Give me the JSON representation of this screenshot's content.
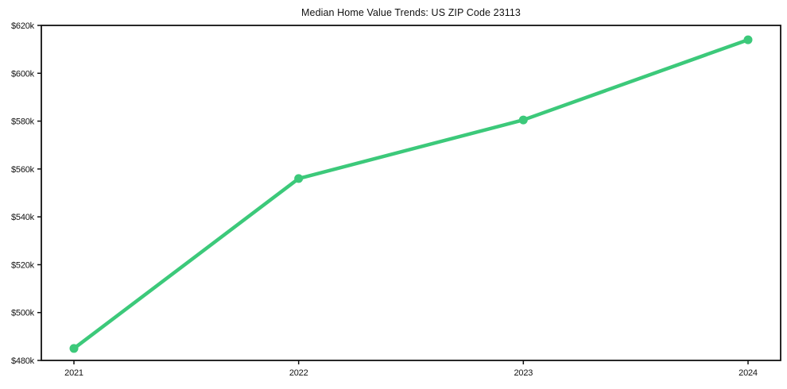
{
  "chart_data": {
    "type": "line",
    "title": "Median Home Value Trends: US ZIP Code 23113",
    "x": [
      2021,
      2022,
      2023,
      2024
    ],
    "x_tick_labels": [
      "2021",
      "2022",
      "2023",
      "2024"
    ],
    "series": [
      {
        "name": "Median Home Value",
        "values": [
          485000,
          556000,
          580500,
          614000
        ]
      }
    ],
    "y_tick_values": [
      480000,
      500000,
      520000,
      540000,
      560000,
      580000,
      600000,
      620000
    ],
    "y_tick_labels": [
      "$480k",
      "$500k",
      "$520k",
      "$540k",
      "$560k",
      "$580k",
      "$600k",
      "$620k"
    ],
    "ylim": [
      480000,
      620000
    ],
    "grid": false,
    "legend": "none",
    "colors": {
      "line": "#3cc97a",
      "marker": "#3cc97a",
      "axis": "#111111",
      "text": "#111111",
      "background": "#ffffff"
    },
    "marker": "circle"
  }
}
